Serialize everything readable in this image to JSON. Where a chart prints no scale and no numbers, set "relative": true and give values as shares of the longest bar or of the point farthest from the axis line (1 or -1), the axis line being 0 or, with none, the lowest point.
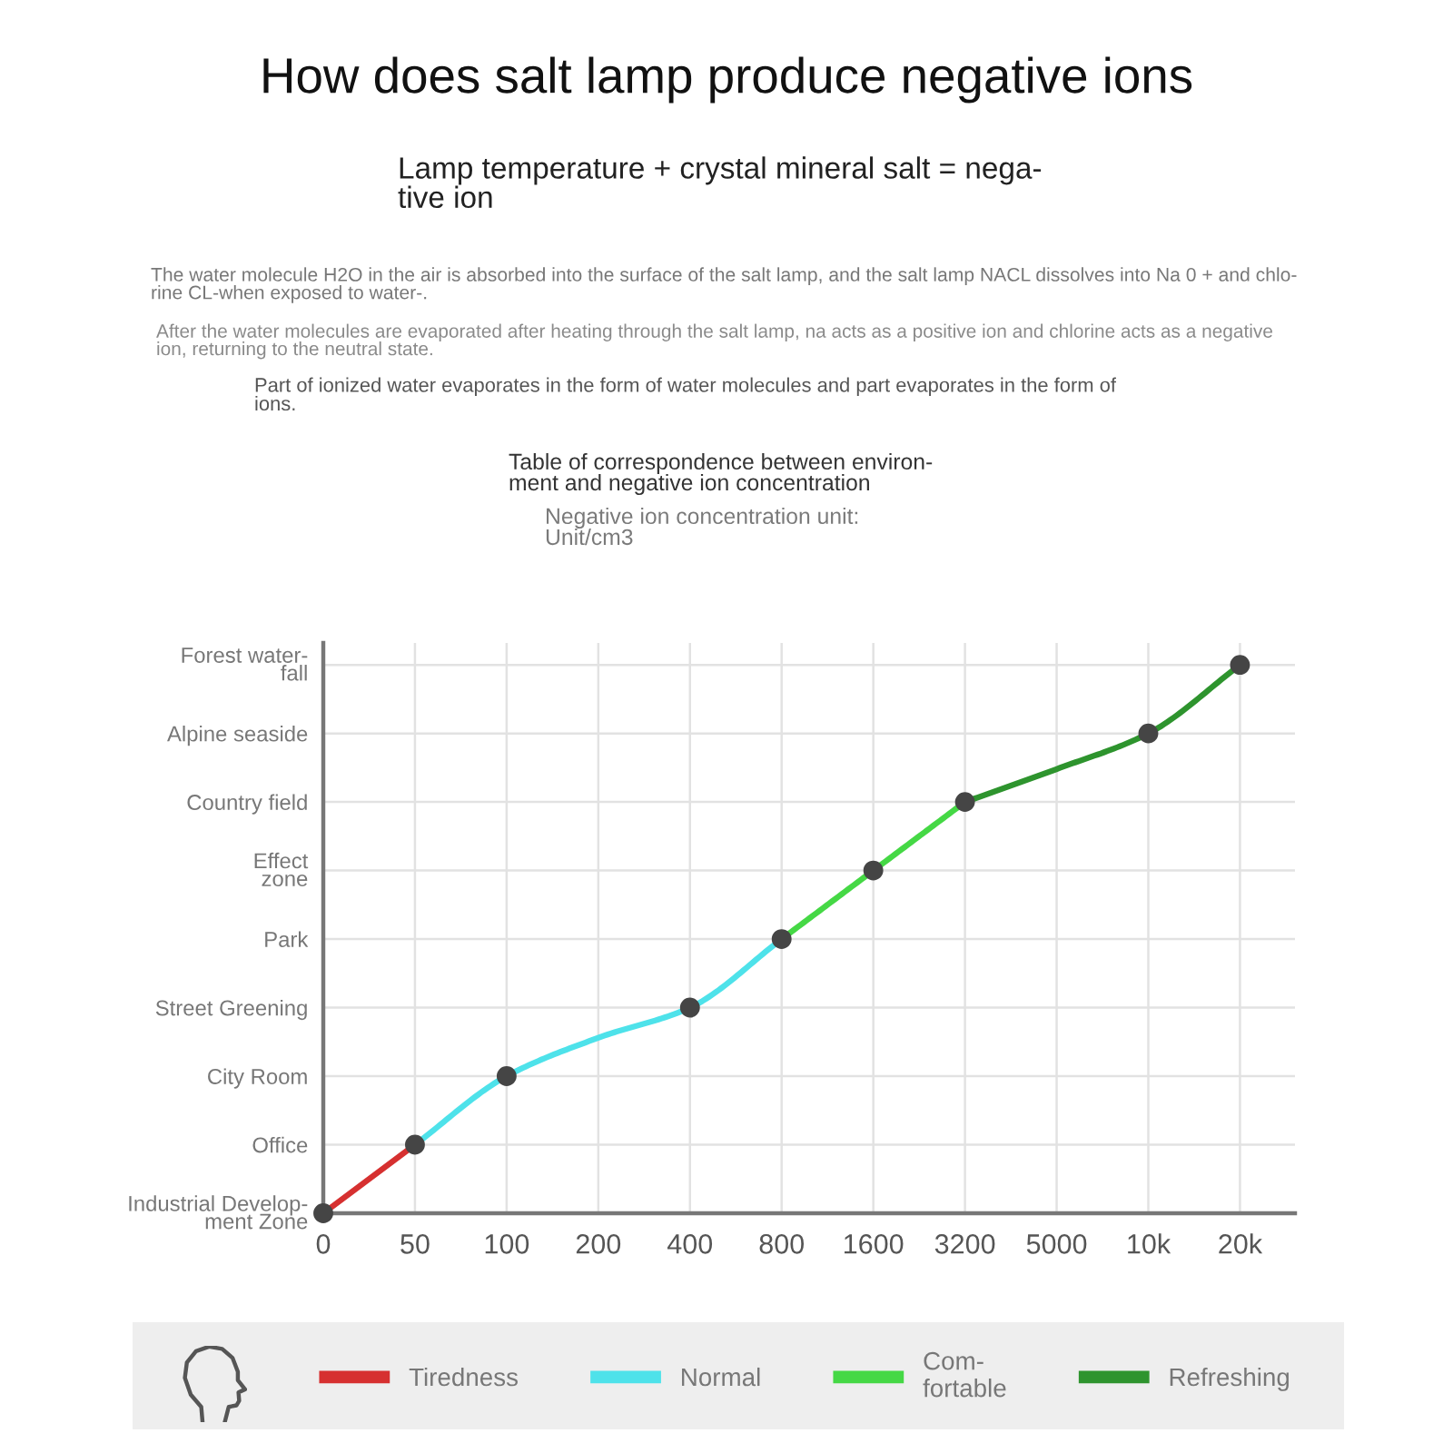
{
  "chart_data": {
    "type": "line",
    "title": "How does salt lamp produce negative ions",
    "subtitle": "Lamp temperature + crystal mineral salt = nega-\ntive ion",
    "annotations": [
      "The water molecule H2O in the air is absorbed into the surface of the salt lamp, and the salt lamp NACL dissolves into Na 0 + and chlo-\nrine CL-when exposed to water-.",
      "After the water molecules are evaporated after heating through the salt lamp, na acts as a positive ion and chlorine acts as a negative\nion, returning to the neutral state.",
      "Part of ionized water evaporates in the form of water molecules and part evaporates in the form of\nions.",
      "Table of correspondence between environ-\nment and negative ion concentration",
      "Negative ion concentration unit:\nUnit/cm3"
    ],
    "categories": [
      "0",
      "50",
      "100",
      "200",
      "400",
      "800",
      "1600",
      "3200",
      "5000",
      "10k",
      "20k"
    ],
    "y_categories": [
      "Forest water-\nfall",
      "Alpine seaside",
      "Country field",
      "Effect\nzone",
      "Park",
      "Street Greening",
      "City Room",
      "Office",
      "Industrial Develop-\nment Zone"
    ],
    "relative": true,
    "grid": true,
    "legend": "bottom",
    "series": [
      {
        "name": "Tiredness",
        "color": "#d63030",
        "values": [
          0,
          0.125,
          null,
          null,
          null,
          null,
          null,
          null,
          null,
          null,
          null
        ]
      },
      {
        "name": "Normal",
        "color": "#4ee2ea",
        "values": [
          null,
          0.125,
          0.25,
          0.32,
          0.375,
          0.5,
          null,
          null,
          null,
          null,
          null
        ]
      },
      {
        "name": "Com-\nfortable",
        "color": "#45d845",
        "values": [
          null,
          null,
          null,
          null,
          null,
          0.5,
          0.625,
          0.75,
          null,
          null,
          null
        ]
      },
      {
        "name": "Refreshing",
        "color": "#2e942e",
        "values": [
          null,
          null,
          null,
          null,
          null,
          null,
          null,
          0.75,
          0.81,
          0.875,
          1
        ]
      },
      {
        "type": "scatter",
        "color": "#454545",
        "marker": "circle",
        "values": [
          0,
          0.125,
          0.25,
          null,
          0.375,
          0.5,
          0.625,
          0.75,
          null,
          0.875,
          1
        ]
      }
    ]
  }
}
